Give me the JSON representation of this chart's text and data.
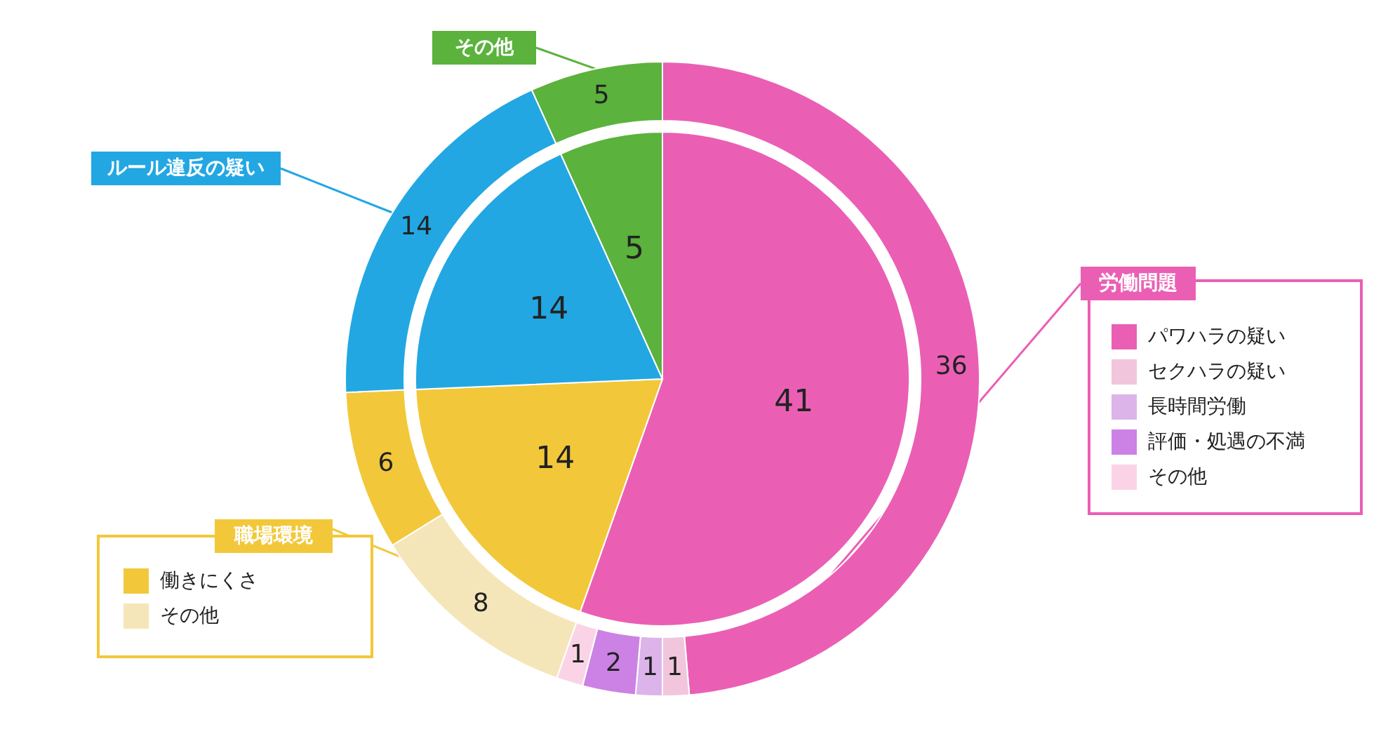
{
  "chart_data": [
    {
      "type": "pie",
      "data_labels": true,
      "legend": "left",
      "categories": [
        "労働問題",
        "職場環境",
        "ルール違反の疑い",
        "その他"
      ],
      "values": [
        41,
        14,
        14,
        5
      ],
      "colors": [
        "#ea5fb4",
        "#f2c83a",
        "#22a7e3",
        "#5bb23c"
      ]
    },
    {
      "type": "donut",
      "data_labels": true,
      "legend": "right",
      "categories": [
        "パワハラの疑い",
        "セクハラの疑い",
        "長時間労働",
        "評価・処遇の不満",
        "その他",
        "その他",
        "働きにくさ",
        null,
        null
      ],
      "values": [
        36,
        1,
        1,
        2,
        1,
        8,
        6,
        14,
        5
      ],
      "colors": [
        "#ea5fb4",
        "#f1c6dc",
        "#dcb4ea",
        "#cc82e4",
        "#fad4e6",
        "#f5e6b9",
        "#f2c83a",
        "#22a7e3",
        "#5bb23c"
      ]
    }
  ]
}
